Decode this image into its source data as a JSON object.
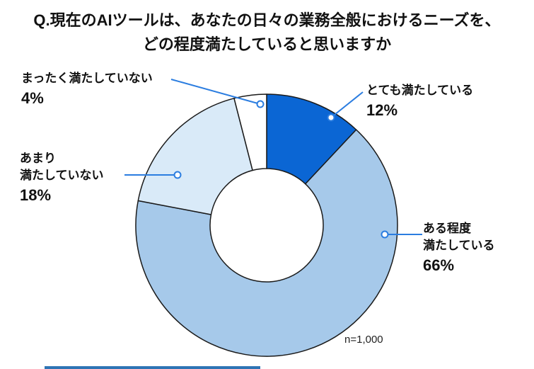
{
  "title": {
    "line1": "Q.現在のAIツールは、あなたの日々の業務全般におけるニーズを、",
    "line2": "どの程度満たしていると思いますか"
  },
  "chart_data": {
    "type": "pie",
    "subtype": "donut",
    "title": "現在のAIツールが日々の業務全般におけるニーズを満たしている程度",
    "categories": [
      "とても満たしている",
      "ある程度満たしている",
      "あまり満たしていない",
      "まったく満たしていない"
    ],
    "values": [
      12,
      66,
      18,
      4
    ],
    "unit": "%",
    "colors": [
      "#0b66d4",
      "#a6c9ea",
      "#d9eaf8",
      "#ffffff"
    ],
    "start_angle_deg": 0,
    "direction": "clockwise",
    "inner_radius_ratio": 0.43,
    "outline_color": "#1a1a1a",
    "legend_position": "callouts",
    "sample_note": "n=1,000"
  },
  "callouts": {
    "totemo": {
      "name": "とても満たしている",
      "value": "12%"
    },
    "aruteido": {
      "name_line1": "ある程度",
      "name_line2": "満たしている",
      "value": "66%"
    },
    "amari": {
      "name_line1": "あまり",
      "name_line2": "満たしていない",
      "value": "18%"
    },
    "mattaku": {
      "name": "まったく満たしていない",
      "value": "4%"
    }
  },
  "note": "n=1,000",
  "colors": {
    "accent": "#0b66d4",
    "leader_line": "#2b7de0",
    "outline": "#1a1a1a",
    "bottom_rule": "#2e74b5"
  }
}
